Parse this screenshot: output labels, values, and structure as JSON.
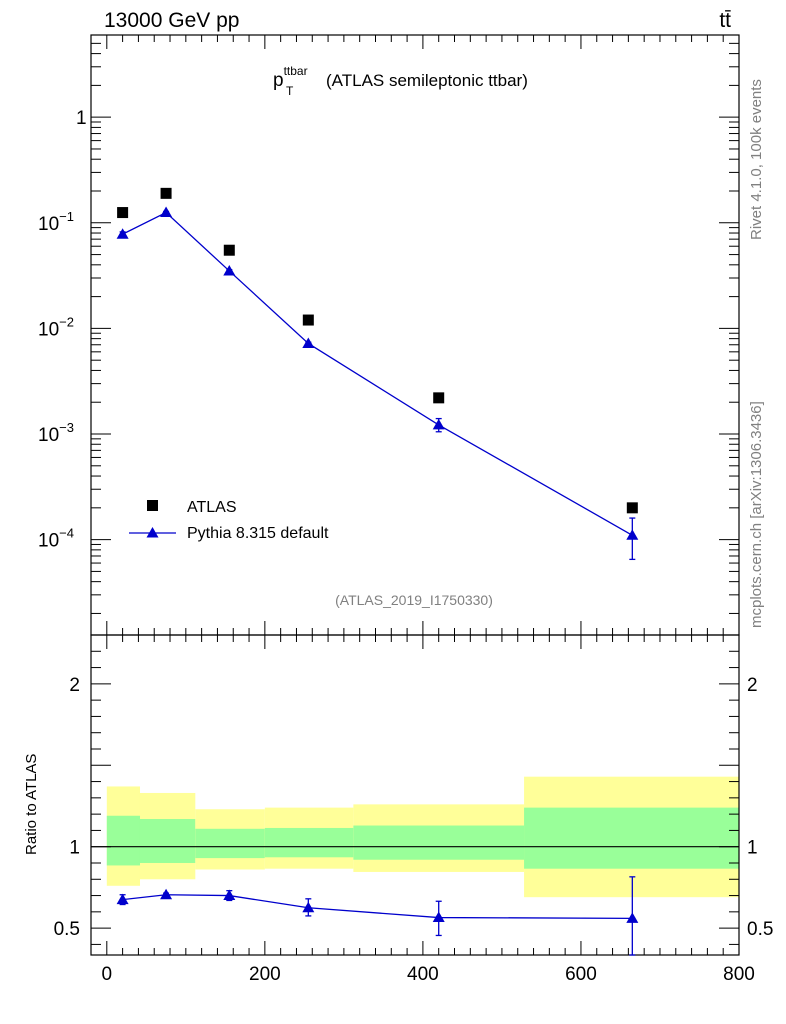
{
  "header": {
    "energy_label": "13000 GeV pp",
    "process_label": "tt̄"
  },
  "side_labels": {
    "rivet": "Rivet 4.1.0,  100k events",
    "mcplots": "mcplots.cern.ch [arXiv:1306.3436]"
  },
  "chart_data": {
    "type": "scatter",
    "title": {
      "symbol": "p",
      "superscript": "ttbar",
      "subscript": "T",
      "text": "(ATLAS semileptonic ttbar)"
    },
    "analysis_id": "(ATLAS_2019_I1750330)",
    "xlim": [
      -20,
      800
    ],
    "x_ticks": [
      0,
      200,
      400,
      600,
      800
    ],
    "x_tick_labels": [
      "0",
      "200",
      "400",
      "600",
      "800"
    ],
    "main_panel": {
      "yscale": "log",
      "ylim": [
        1.25e-05,
        6
      ],
      "y_ticks": [
        0.0001,
        0.001,
        0.01,
        0.1,
        1
      ],
      "y_tick_labels": [
        {
          "base": "10",
          "exp": "−4"
        },
        {
          "base": "10",
          "exp": "−3"
        },
        {
          "base": "10",
          "exp": "−2"
        },
        {
          "base": "10",
          "exp": "−1"
        },
        {
          "base": "1",
          "exp": ""
        }
      ],
      "series": [
        {
          "name": "ATLAS",
          "marker": "square",
          "color": "#000000",
          "x": [
            20,
            75,
            155,
            255,
            420,
            665
          ],
          "y": [
            0.125,
            0.19,
            0.055,
            0.012,
            0.0022,
            0.0002
          ]
        },
        {
          "name": "Pythia 8.315 default",
          "marker": "triangle",
          "color": "#0000cc",
          "line": true,
          "x": [
            20,
            75,
            155,
            255,
            420,
            665
          ],
          "y": [
            0.078,
            0.125,
            0.035,
            0.0072,
            0.00122,
            0.00011
          ],
          "err_low": [
            0.074,
            0.122,
            0.034,
            0.007,
            0.00105,
            6.5e-05
          ],
          "err_high": [
            0.082,
            0.128,
            0.036,
            0.0074,
            0.0014,
            0.00016
          ]
        }
      ]
    },
    "ratio_panel": {
      "ylabel": "Ratio to ATLAS",
      "ylim": [
        0.335,
        2.3
      ],
      "y_ticks": [
        0.5,
        1,
        2
      ],
      "y_tick_labels": [
        "0.5",
        "1",
        "2"
      ],
      "reference_line": 1,
      "uncertainty_bands": [
        {
          "x_low": 0,
          "x_high": 42,
          "inner_low": 0.885,
          "inner_high": 1.19,
          "outer_low": 0.76,
          "outer_high": 1.37
        },
        {
          "x_low": 42,
          "x_high": 112,
          "inner_low": 0.9,
          "inner_high": 1.17,
          "outer_low": 0.8,
          "outer_high": 1.33
        },
        {
          "x_low": 112,
          "x_high": 200,
          "inner_low": 0.93,
          "inner_high": 1.11,
          "outer_low": 0.86,
          "outer_high": 1.23
        },
        {
          "x_low": 200,
          "x_high": 312,
          "inner_low": 0.935,
          "inner_high": 1.115,
          "outer_low": 0.865,
          "outer_high": 1.24
        },
        {
          "x_low": 312,
          "x_high": 528,
          "inner_low": 0.92,
          "inner_high": 1.13,
          "outer_low": 0.845,
          "outer_high": 1.26
        },
        {
          "x_low": 528,
          "x_high": 800,
          "inner_low": 0.865,
          "inner_high": 1.24,
          "outer_low": 0.69,
          "outer_high": 1.43
        }
      ],
      "band_colors": {
        "inner": "#99ff99",
        "outer": "#ffff99"
      },
      "series": {
        "name": "Pythia 8.315 default",
        "color": "#0000cc",
        "x": [
          20,
          75,
          155,
          255,
          420,
          665
        ],
        "y": [
          0.675,
          0.705,
          0.7,
          0.625,
          0.565,
          0.56
        ],
        "err_low": [
          0.645,
          0.695,
          0.67,
          0.575,
          0.455,
          0.335
        ],
        "err_high": [
          0.705,
          0.715,
          0.73,
          0.68,
          0.665,
          0.815
        ]
      }
    }
  }
}
